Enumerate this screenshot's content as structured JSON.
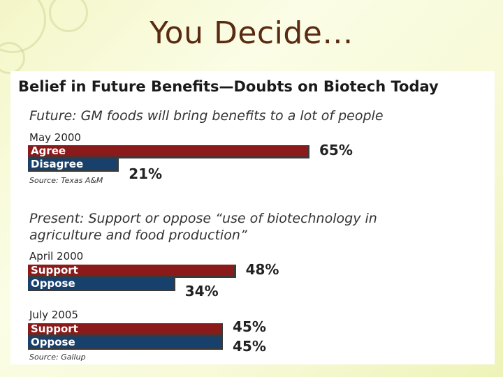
{
  "slide": {
    "title": "You Decide…"
  },
  "colors": {
    "agree_support": "#8b1a1a",
    "disagree_oppose": "#17406d",
    "title_text": "#5a2a12"
  },
  "chart_data": {
    "type": "bar",
    "title": "Belief in Future Benefits—Doubts on Biotech Today",
    "sections": [
      {
        "question": [
          "Future:  GM foods will bring benefits to a lot of people"
        ],
        "groups": [
          {
            "date": "May 2000",
            "bars": [
              {
                "name": "Agree",
                "value": 65,
                "label": "65%"
              },
              {
                "name": "Disagree",
                "value": 21,
                "label": "21%"
              }
            ]
          }
        ],
        "source": "Source: Texas A&M"
      },
      {
        "question": [
          "Present:  Support or oppose “use of biotechnology in",
          "agriculture and food production”"
        ],
        "groups": [
          {
            "date": "April 2000",
            "bars": [
              {
                "name": "Support",
                "value": 48,
                "label": "48%"
              },
              {
                "name": "Oppose",
                "value": 34,
                "label": "34%"
              }
            ]
          },
          {
            "date": "July 2005",
            "bars": [
              {
                "name": "Support",
                "value": 45,
                "label": "45%"
              },
              {
                "name": "Oppose",
                "value": 45,
                "label": "45%"
              }
            ]
          }
        ],
        "source": "Source: Gallup"
      }
    ]
  }
}
